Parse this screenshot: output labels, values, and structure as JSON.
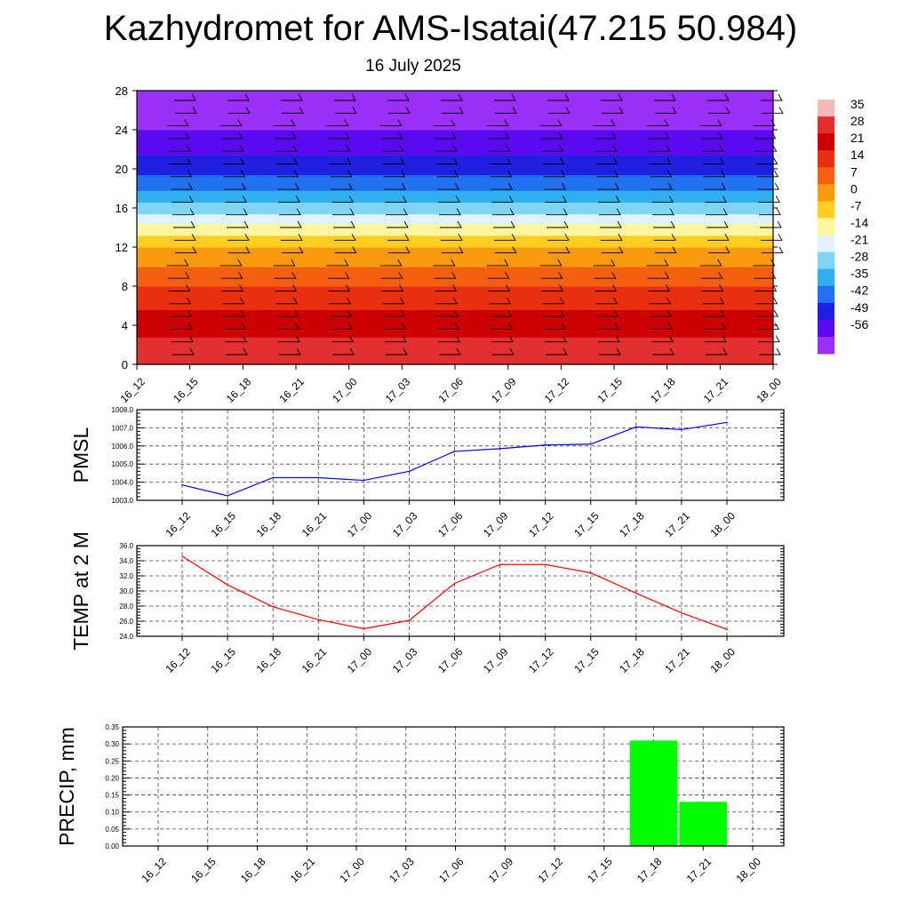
{
  "title": "Kazhydromet for AMS-Isatai(47.215 50.984)",
  "subtitle": "16 July 2025",
  "time_labels": [
    "16_12",
    "16_15",
    "16_18",
    "16_21",
    "17_00",
    "17_03",
    "17_06",
    "17_09",
    "17_12",
    "17_15",
    "17_18",
    "17_21",
    "18_00"
  ],
  "colorbar": {
    "labels": [
      "35",
      "28",
      "21",
      "14",
      "7",
      "0",
      "-7",
      "-14",
      "-21",
      "-28",
      "-35",
      "-42",
      "-49",
      "-56"
    ],
    "stops": [
      "#f4b8b8",
      "#e23030",
      "#cc0000",
      "#e83010",
      "#f46010",
      "#fa9a10",
      "#ffce20",
      "#fff7a0",
      "#e0f4ff",
      "#80d4f4",
      "#30b0f0",
      "#2070f0",
      "#2020e0",
      "#5a0af0",
      "#9a30f8"
    ]
  },
  "chart_data": [
    {
      "type": "heatmap",
      "title": "",
      "xlabel": "",
      "ylabel": "",
      "x": [
        "16_12",
        "16_15",
        "16_18",
        "16_21",
        "17_00",
        "17_03",
        "17_06",
        "17_09",
        "17_12",
        "17_15",
        "17_18",
        "17_21",
        "18_00"
      ],
      "ylim": [
        0,
        28
      ],
      "yticks": [
        "0",
        "4",
        "8",
        "12",
        "16",
        "20",
        "24",
        "28"
      ],
      "profile": [
        {
          "level": 0,
          "temp": 32
        },
        {
          "level": 2,
          "temp": 30
        },
        {
          "level": 4,
          "temp": 25
        },
        {
          "level": 6,
          "temp": 20
        },
        {
          "level": 8,
          "temp": 14
        },
        {
          "level": 10,
          "temp": 7
        },
        {
          "level": 12,
          "temp": 0
        },
        {
          "level": 13.5,
          "temp": -9
        },
        {
          "level": 15,
          "temp": -18
        },
        {
          "level": 16.5,
          "temp": -27
        },
        {
          "level": 18,
          "temp": -36
        },
        {
          "level": 21,
          "temp": -48
        },
        {
          "level": 24,
          "temp": -56
        },
        {
          "level": 28,
          "temp": -60
        }
      ]
    },
    {
      "type": "line",
      "xlabel": "",
      "ylabel": "PMSL",
      "x": [
        "16_12",
        "16_15",
        "16_18",
        "16_21",
        "17_00",
        "17_03",
        "17_06",
        "17_09",
        "17_12",
        "17_15",
        "17_18",
        "17_21",
        "18_00"
      ],
      "yticks": [
        "1003.0",
        "1004.0",
        "1005.0",
        "1006.0",
        "1007.0",
        "1008.0"
      ],
      "ylim": [
        1003.0,
        1008.0
      ],
      "color": "#0000ff",
      "series": [
        {
          "values": [
            1003.85,
            1003.25,
            1004.25,
            1004.25,
            1004.1,
            1004.6,
            1005.7,
            1005.85,
            1006.05,
            1006.1,
            1007.05,
            1006.9,
            1007.3
          ]
        }
      ]
    },
    {
      "type": "line",
      "xlabel": "",
      "ylabel": "TEMP at 2 M",
      "x": [
        "16_12",
        "16_15",
        "16_18",
        "16_21",
        "17_00",
        "17_03",
        "17_06",
        "17_09",
        "17_12",
        "17_15",
        "17_18",
        "17_21",
        "18_00"
      ],
      "yticks": [
        "24.0",
        "26.0",
        "28.0",
        "30.0",
        "32.0",
        "34.0",
        "36.0"
      ],
      "ylim": [
        24.0,
        36.0
      ],
      "color": "#ff0000",
      "series": [
        {
          "values": [
            34.6,
            30.8,
            27.9,
            26.2,
            25.0,
            26.1,
            31.0,
            33.5,
            33.5,
            32.4,
            29.7,
            27.1,
            24.9
          ]
        }
      ]
    },
    {
      "type": "bar",
      "xlabel": "",
      "ylabel": "PRECIP, mm",
      "categories": [
        "16_12",
        "16_15",
        "16_18",
        "16_21",
        "17_00",
        "17_03",
        "17_06",
        "17_09",
        "17_12",
        "17_15",
        "17_18",
        "17_21",
        "18_00"
      ],
      "values": [
        0,
        0,
        0,
        0,
        0,
        0,
        0,
        0,
        0,
        0,
        0.31,
        0.13,
        0
      ],
      "yticks": [
        "0.00",
        "0.05",
        "0.10",
        "0.15",
        "0.20",
        "0.25",
        "0.30",
        "0.35"
      ],
      "ylim": [
        0,
        0.35
      ],
      "color": "#00ff00"
    }
  ]
}
